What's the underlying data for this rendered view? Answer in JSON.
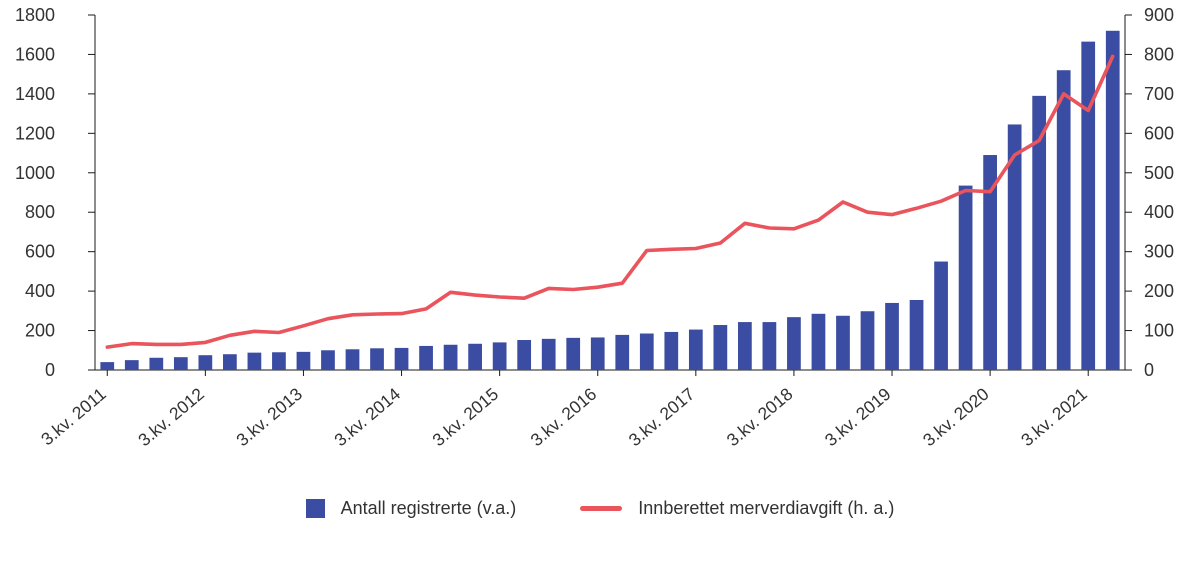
{
  "chart_data": {
    "type": "bar+line",
    "title": "",
    "categories": [
      "3.kv. 2011",
      "4.kv. 2011",
      "1.kv. 2012",
      "2.kv. 2012",
      "3.kv. 2012",
      "4.kv. 2012",
      "1.kv. 2013",
      "2.kv. 2013",
      "3.kv. 2013",
      "4.kv. 2013",
      "1.kv. 2014",
      "2.kv. 2014",
      "3.kv. 2014",
      "4.kv. 2014",
      "1.kv. 2015",
      "2.kv. 2015",
      "3.kv. 2015",
      "4.kv. 2015",
      "1.kv. 2016",
      "2.kv. 2016",
      "3.kv. 2016",
      "4.kv. 2016",
      "1.kv. 2017",
      "2.kv. 2017",
      "3.kv. 2017",
      "4.kv. 2017",
      "1.kv. 2018",
      "2.kv. 2018",
      "3.kv. 2018",
      "4.kv. 2018",
      "1.kv. 2019",
      "2.kv. 2019",
      "3.kv. 2019",
      "4.kv. 2019",
      "1.kv. 2020",
      "2.kv. 2020",
      "3.kv. 2020",
      "4.kv. 2020",
      "1.kv. 2021",
      "2.kv. 2021",
      "3.kv. 2021",
      "4.kv. 2021"
    ],
    "x_tick_labels_shown": [
      "3.kv. 2011",
      "3.kv. 2012",
      "3.kv. 2013",
      "3.kv. 2014",
      "3.kv. 2015",
      "3.kv. 2016",
      "3.kv. 2017",
      "3.kv. 2018",
      "3.kv. 2019",
      "3.kv. 2020",
      "3.kv. 2021"
    ],
    "series": [
      {
        "name": "Antall registrerte (v.a.)",
        "type": "bar",
        "axis": "left",
        "color": "#3b4da2",
        "values": [
          40,
          50,
          62,
          65,
          75,
          80,
          88,
          90,
          92,
          100,
          105,
          110,
          112,
          122,
          128,
          133,
          140,
          152,
          158,
          163,
          165,
          178,
          185,
          193,
          205,
          228,
          243,
          243,
          268,
          285,
          275,
          298,
          340,
          355,
          550,
          935,
          1090,
          1245,
          1390,
          1520,
          1665,
          1720
        ]
      },
      {
        "name": "Innberettet merverdiavgift (h. a.)",
        "type": "line",
        "axis": "right",
        "color": "#ea545c",
        "values": [
          58,
          67,
          65,
          65,
          70,
          88,
          98,
          95,
          112,
          130,
          140,
          142,
          143,
          155,
          197,
          190,
          185,
          182,
          207,
          204,
          210,
          220,
          303,
          306,
          308,
          322,
          372,
          360,
          358,
          380,
          426,
          400,
          394,
          410,
          428,
          455,
          452,
          545,
          582,
          700,
          658,
          795
        ]
      }
    ],
    "left_axis": {
      "min": 0,
      "max": 1800,
      "step": 200,
      "ticks": [
        0,
        200,
        400,
        600,
        800,
        1000,
        1200,
        1400,
        1600,
        1800
      ]
    },
    "right_axis": {
      "min": 0,
      "max": 900,
      "step": 100,
      "ticks": [
        0,
        100,
        200,
        300,
        400,
        500,
        600,
        700,
        800,
        900
      ]
    },
    "grid": false,
    "legend_position": "bottom"
  },
  "legend": {
    "bar_label": "Antall registrerte (v.a.)",
    "line_label": "Innberettet merverdiavgift (h. a.)"
  }
}
